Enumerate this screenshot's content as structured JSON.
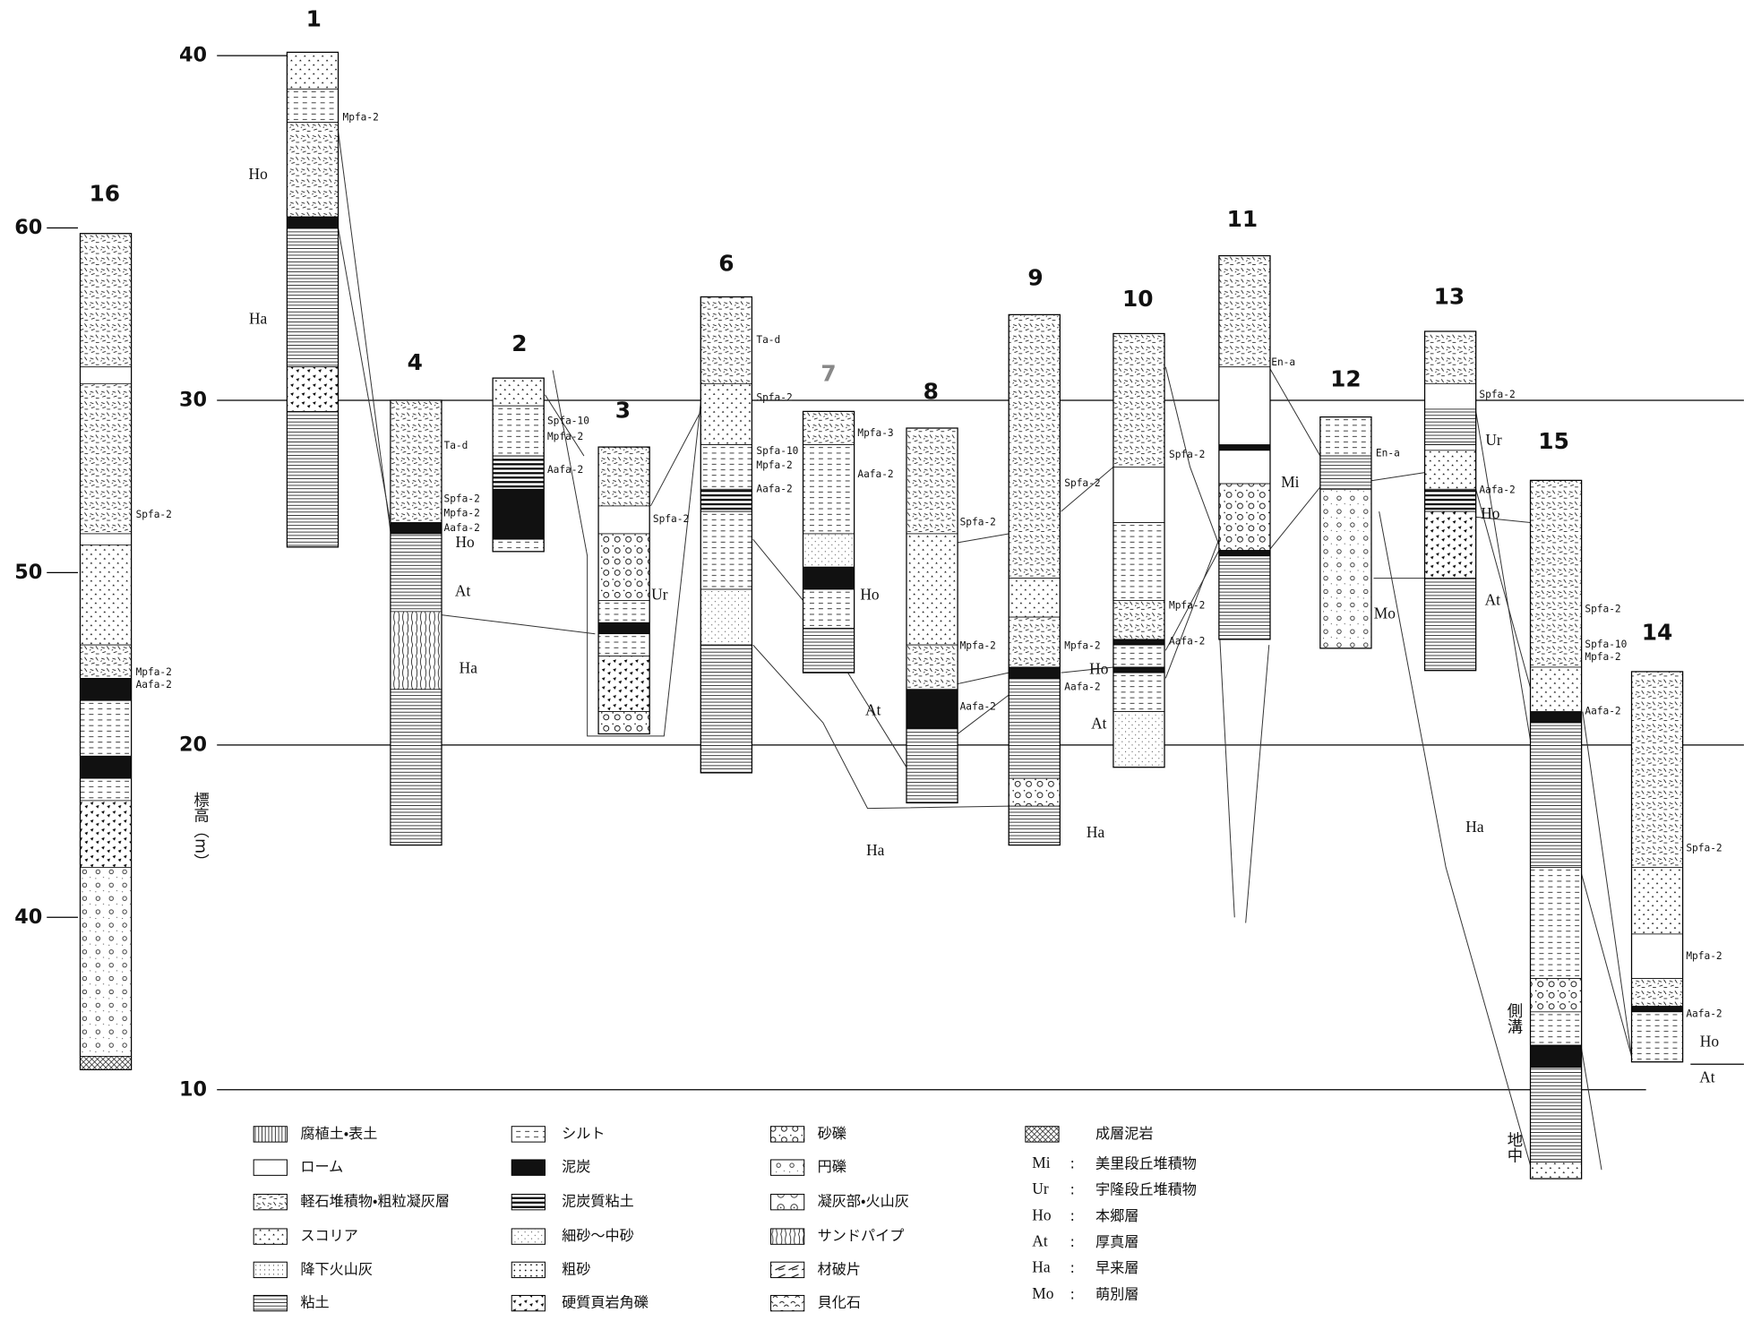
{
  "axes": {
    "label": "標高（m）",
    "main_ticks": [
      40,
      30,
      20,
      10
    ],
    "column16_ticks": [
      60,
      50,
      40
    ]
  },
  "columns": [
    {
      "label": "16",
      "tephra": [
        "Spfa-2",
        "Mpfa-2",
        "Aafa-2"
      ],
      "units": []
    },
    {
      "label": "1",
      "tephra": [
        "Mpfa-2"
      ],
      "units": [
        "Ho",
        "Ha"
      ]
    },
    {
      "label": "4",
      "tephra": [
        "Ta-d",
        "Spfa-2",
        "Mpfa-2",
        "Aafa-2"
      ],
      "units": [
        "Ho",
        "At",
        "Ha"
      ]
    },
    {
      "label": "2",
      "tephra": [
        "Spfa-10",
        "Mpfa-2",
        "Aafa-2"
      ],
      "units": []
    },
    {
      "label": "3",
      "tephra": [
        "Spfa-2"
      ],
      "units": [
        "Ur"
      ]
    },
    {
      "label": "6",
      "tephra": [
        "Ta-d",
        "Spfa-2",
        "Spfa-10",
        "Mpfa-2",
        "Aafa-2"
      ],
      "units": []
    },
    {
      "label": "7",
      "tephra": [
        "Mpfa-3",
        "Aafa-2"
      ],
      "units": [
        "Ho"
      ]
    },
    {
      "label": "8",
      "tephra": [
        "Spfa-2",
        "Mpfa-2",
        "Aafa-2"
      ],
      "units": [
        "At",
        "Ha"
      ]
    },
    {
      "label": "9",
      "tephra": [
        "Spfa-2",
        "Mpfa-2",
        "Aafa-2"
      ],
      "units": [
        "Ha"
      ]
    },
    {
      "label": "10",
      "tephra": [
        "Spfa-2",
        "Mpfa-2",
        "Aafa-2"
      ],
      "units": [
        "Ho",
        "At"
      ]
    },
    {
      "label": "11",
      "tephra": [
        "En-a"
      ],
      "units": [
        "Mi"
      ]
    },
    {
      "label": "12",
      "tephra": [
        "En-a"
      ],
      "units": [
        "Mo"
      ]
    },
    {
      "label": "13",
      "tephra": [
        "Spfa-2",
        "Aafa-2"
      ],
      "units": [
        "Ur",
        "Ho",
        "At",
        "Ha"
      ]
    },
    {
      "label": "15",
      "tephra": [
        "Spfa-2",
        "Spfa-10",
        "Mpfa-2",
        "Aafa-2"
      ],
      "units": []
    },
    {
      "label": "14",
      "tephra": [
        "Spfa-2",
        "Mpfa-2",
        "Aafa-2"
      ],
      "units": [
        "Ho",
        "At"
      ]
    }
  ],
  "notes": {
    "ditch": "側溝",
    "underground": "地中"
  },
  "legend": {
    "patterns": [
      "腐植土・表土",
      "ローム",
      "軽石堆積物・粗粒凝灰層",
      "スコリア",
      "降下火山灰",
      "粘土",
      "シルト",
      "泥炭",
      "泥炭質粘土",
      "細砂〜中砂",
      "粗砂",
      "硬質頁岩角礫",
      "砂礫",
      "円礫",
      "凝灰部・火山灰",
      "サンドパイプ",
      "材破片",
      "貝化石",
      "成層泥岩"
    ],
    "abbreviations": [
      {
        "code": "Mi",
        "sep": ":",
        "name": "美里段丘堆積物"
      },
      {
        "code": "Ur",
        "sep": ":",
        "name": "宇隆段丘堆積物"
      },
      {
        "code": "Ho",
        "sep": ":",
        "name": "本郷層"
      },
      {
        "code": "At",
        "sep": ":",
        "name": "厚真層"
      },
      {
        "code": "Ha",
        "sep": ":",
        "name": "早来層"
      },
      {
        "code": "Mo",
        "sep": ":",
        "name": "萌別層"
      }
    ]
  }
}
